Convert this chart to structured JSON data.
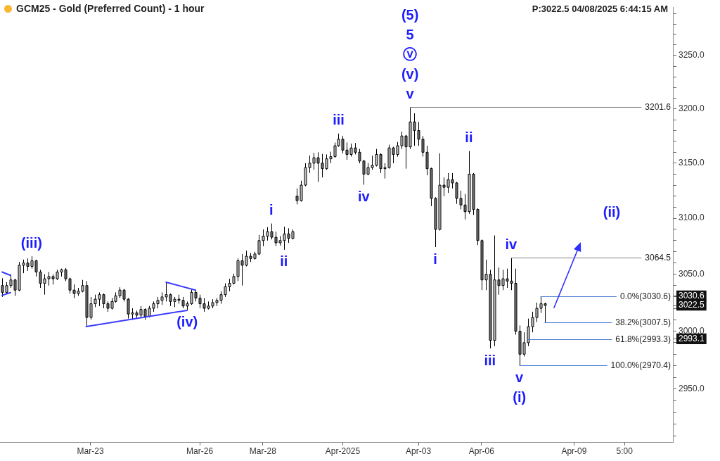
{
  "chart_data": {
    "type": "candlestick",
    "title": "GCM25 - Gold (Preferred Count) - 1 hour",
    "subtitle": "P:3022.5 04/08/2025 6:44:15 AM",
    "categories": [
      null,
      null,
      null,
      null,
      null,
      null,
      null,
      null,
      null,
      null,
      null,
      null,
      null,
      null,
      null,
      null,
      null,
      null,
      null,
      null,
      null,
      "Mar-23",
      null,
      null,
      null,
      null,
      null,
      null,
      null,
      null,
      null,
      null,
      null,
      null,
      null,
      null,
      null,
      null,
      null,
      null,
      null,
      null,
      null,
      null,
      null,
      null,
      null,
      "Mar-26",
      null,
      null,
      null,
      null,
      null,
      null,
      null,
      null,
      null,
      null,
      null,
      null,
      null,
      null,
      "Mar-28",
      null,
      null,
      null,
      null,
      null,
      null,
      null,
      null,
      null,
      null,
      null,
      null,
      null,
      null,
      null,
      null,
      null,
      null,
      "Apr-2025",
      null,
      null,
      null,
      null,
      null,
      null,
      null,
      null,
      null,
      null,
      null,
      null,
      null,
      null,
      null,
      null,
      null,
      "Apr-03",
      null,
      null,
      null,
      null,
      null,
      null,
      null,
      null,
      null,
      null,
      null,
      null,
      null,
      null,
      "Apr-06",
      null,
      null,
      null,
      null,
      null,
      null,
      null,
      null,
      null,
      null,
      null,
      null,
      null,
      null,
      null,
      null,
      null,
      null,
      null,
      null,
      null,
      "Apr-09",
      null,
      null,
      null,
      null,
      null,
      null,
      null,
      null,
      null,
      null,
      null,
      "5:00",
      null,
      null,
      null,
      null,
      null,
      null,
      null,
      null,
      null,
      null,
      null
    ],
    "ohlc": [
      [
        3040,
        3046.5,
        3030,
        3034
      ],
      [
        3034,
        3043,
        3033,
        3040
      ],
      [
        3040,
        3050,
        3038,
        3045
      ],
      [
        3045,
        3046,
        3031,
        3036
      ],
      [
        3036,
        3061,
        3035,
        3058
      ],
      [
        3058,
        3063,
        3051,
        3060
      ],
      [
        3060,
        3064,
        3053,
        3057
      ],
      [
        3057,
        3066,
        3055,
        3062
      ],
      [
        3062,
        3063,
        3048,
        3052
      ],
      [
        3052,
        3054,
        3038,
        3042
      ],
      [
        3042,
        3050,
        3032,
        3046
      ],
      [
        3046,
        3052,
        3040,
        3048
      ],
      [
        3048,
        3050,
        3041,
        3046
      ],
      [
        3046,
        3054,
        3045,
        3052
      ],
      [
        3052,
        3055,
        3048,
        3054
      ],
      [
        3054,
        3055.5,
        3044,
        3046
      ],
      [
        3046,
        3047,
        3033,
        3036
      ],
      [
        3036,
        3041,
        3029,
        3033
      ],
      [
        3033,
        3038,
        3031,
        3035
      ],
      [
        3035,
        3045,
        3034,
        3040
      ],
      [
        3040,
        3044,
        3004.0,
        3012
      ],
      [
        3012,
        3030,
        3010,
        3024
      ],
      [
        3024,
        3032,
        3021,
        3028
      ],
      [
        3028,
        3034,
        3022,
        3032
      ],
      [
        3032,
        3033,
        3020,
        3024
      ],
      [
        3024,
        3026,
        3017,
        3020
      ],
      [
        3020,
        3029,
        3019,
        3026
      ],
      [
        3026,
        3034,
        3025,
        3031
      ],
      [
        3031,
        3038.5,
        3029,
        3036
      ],
      [
        3036,
        3037,
        3026,
        3028
      ],
      [
        3028,
        3029,
        3011,
        3015
      ],
      [
        3015,
        3020,
        3010,
        3016
      ],
      [
        3016,
        3018,
        3011,
        3014
      ],
      [
        3014,
        3022,
        3012,
        3019
      ],
      [
        3019,
        3020,
        3010,
        3013
      ],
      [
        3013,
        3022,
        3012,
        3020
      ],
      [
        3020,
        3026,
        3017,
        3024
      ],
      [
        3024,
        3030,
        3020,
        3027
      ],
      [
        3027,
        3034,
        3023,
        3030
      ],
      [
        3030,
        3043.0,
        3026,
        3032
      ],
      [
        3032,
        3033,
        3022,
        3026
      ],
      [
        3026,
        3030,
        3021,
        3028
      ],
      [
        3028,
        3032,
        3024,
        3027
      ],
      [
        3027,
        3030,
        3020,
        3022
      ],
      [
        3022,
        3026,
        3018.2,
        3024
      ],
      [
        3024,
        3036.5,
        3023,
        3034
      ],
      [
        3034,
        3036,
        3026,
        3029
      ],
      [
        3029,
        3032,
        3020,
        3024
      ],
      [
        3024,
        3029,
        3017,
        3020
      ],
      [
        3020,
        3026,
        3019,
        3022
      ],
      [
        3022,
        3028,
        3020,
        3025
      ],
      [
        3025,
        3029,
        3022,
        3027
      ],
      [
        3027,
        3035,
        3024,
        3032
      ],
      [
        3032,
        3042,
        3030,
        3039
      ],
      [
        3039,
        3046,
        3035,
        3042
      ],
      [
        3042,
        3050.5,
        3041,
        3048
      ],
      [
        3048,
        3064,
        3044,
        3062
      ],
      [
        3062,
        3068,
        3040,
        3058
      ],
      [
        3058,
        3071,
        3057,
        3066
      ],
      [
        3066,
        3069,
        3061,
        3064
      ],
      [
        3064,
        3070,
        3063,
        3068
      ],
      [
        3068,
        3085,
        3067,
        3080
      ],
      [
        3080,
        3090,
        3075,
        3084
      ],
      [
        3084,
        3092,
        3080,
        3088
      ],
      [
        3088,
        3095.3,
        3081,
        3083
      ],
      [
        3083,
        3088,
        3075,
        3078
      ],
      [
        3078,
        3084,
        3075.5,
        3080
      ],
      [
        3080,
        3092.5,
        3071.8,
        3086
      ],
      [
        3086,
        3091,
        3078,
        3082
      ],
      [
        3082,
        3090,
        3081,
        3088
      ],
      [
        3120,
        3127,
        3112.6,
        3116
      ],
      [
        3116,
        3134,
        3115,
        3130
      ],
      [
        3130,
        3150,
        3129,
        3146
      ],
      [
        3146,
        3157,
        3141,
        3150
      ],
      [
        3150,
        3159.5,
        3144,
        3155
      ],
      [
        3155,
        3160,
        3133,
        3150
      ],
      [
        3150,
        3158.5,
        3137,
        3145
      ],
      [
        3145,
        3158,
        3144,
        3154
      ],
      [
        3154,
        3160.5,
        3150,
        3156
      ],
      [
        3156,
        3169,
        3155,
        3166
      ],
      [
        3166,
        3177.2,
        3165,
        3172
      ],
      [
        3172,
        3175,
        3159,
        3162
      ],
      [
        3162,
        3169,
        3153,
        3158
      ],
      [
        3158,
        3168,
        3156,
        3164
      ],
      [
        3164,
        3168.5,
        3158,
        3160
      ],
      [
        3160,
        3163,
        3150,
        3152
      ],
      [
        3152,
        3153,
        3130.4,
        3140
      ],
      [
        3140,
        3150,
        3139,
        3146
      ],
      [
        3146,
        3157,
        3144,
        3148
      ],
      [
        3148,
        3163,
        3147,
        3158
      ],
      [
        3158,
        3159,
        3141,
        3145
      ],
      [
        3145,
        3150,
        3136,
        3146
      ],
      [
        3146,
        3167,
        3145,
        3164
      ],
      [
        3164,
        3165,
        3150,
        3158
      ],
      [
        3158,
        3169.5,
        3156,
        3166
      ],
      [
        3166,
        3179,
        3163,
        3175
      ],
      [
        3175,
        3176,
        3145,
        3165
      ],
      [
        3165,
        3201.6,
        3163,
        3188
      ],
      [
        3188,
        3196,
        3166,
        3180
      ],
      [
        3180,
        3188,
        3166,
        3172
      ],
      [
        3172,
        3175,
        3156,
        3160
      ],
      [
        3160,
        3166,
        3139,
        3145
      ],
      [
        3145,
        3146,
        3111,
        3118
      ],
      [
        3118,
        3119,
        3074.2,
        3090
      ],
      [
        3090,
        3159,
        3089,
        3130
      ],
      [
        3130,
        3137,
        3120,
        3128
      ],
      [
        3128,
        3141,
        3123,
        3135
      ],
      [
        3135,
        3141,
        3127,
        3132
      ],
      [
        3132,
        3133,
        3113,
        3118
      ],
      [
        3118,
        3125,
        3108,
        3112
      ],
      [
        3112,
        3122,
        3099,
        3106
      ],
      [
        3106,
        3161.1,
        3104,
        3140
      ],
      [
        3140,
        3141,
        3103,
        3108
      ],
      [
        3108,
        3109,
        3076,
        3080
      ],
      [
        3080,
        3081,
        3036,
        3045
      ],
      [
        3045,
        3063,
        3036,
        3050
      ],
      [
        3050,
        3054,
        2985.0,
        2992
      ],
      [
        2992,
        3084.6,
        2987,
        3045
      ],
      [
        3045,
        3056,
        3032,
        3040
      ],
      [
        3040,
        3054,
        3036,
        3046
      ],
      [
        3046,
        3055,
        3038,
        3044
      ],
      [
        3044,
        3064.5,
        3036,
        3042
      ],
      [
        3042,
        3055,
        2997,
        3000
      ],
      [
        3000,
        3005,
        2970.4,
        2980
      ],
      [
        2980,
        2999,
        2978,
        2990
      ],
      [
        2990,
        3011,
        2987,
        3004
      ],
      [
        3004,
        3017,
        2999,
        3012
      ],
      [
        3012,
        3025,
        3008,
        3020
      ],
      [
        3020,
        3030.6,
        3016,
        3024
      ],
      [
        3024,
        3025,
        3007.5,
        3022.5
      ],
      null,
      null,
      null,
      null,
      null,
      null,
      null,
      null,
      null,
      null,
      null,
      null,
      null,
      null,
      null,
      null,
      null,
      null,
      null,
      null,
      null,
      null,
      null,
      null,
      null,
      null,
      null,
      null,
      null,
      null
    ],
    "colors": [
      "#707070",
      "#c0c0c0",
      "#c0c0c0",
      "#707070",
      "#c0c0c0",
      "#c0c0c0",
      "#707070",
      "#c0c0c0",
      "#707070",
      "#707070",
      "#c0c0c0",
      "#c0c0c0",
      "#707070",
      "#c0c0c0",
      "#c0c0c0",
      "#707070",
      "#707070",
      "#707070",
      "#c0c0c0",
      "#c0c0c0",
      "#707070",
      "#c0c0c0",
      "#c0c0c0",
      "#c0c0c0",
      "#707070",
      "#707070",
      "#c0c0c0",
      "#c0c0c0",
      "#c0c0c0",
      "#707070",
      "#707070",
      "#c0c0c0",
      "#707070",
      "#c0c0c0",
      "#707070",
      "#c0c0c0",
      "#c0c0c0",
      "#c0c0c0",
      "#c0c0c0",
      "#c0c0c0",
      "#707070",
      "#c0c0c0",
      "#707070",
      "#707070",
      "#c0c0c0",
      "#c0c0c0",
      "#707070",
      "#707070",
      "#707070",
      "#c0c0c0",
      "#c0c0c0",
      "#c0c0c0",
      "#c0c0c0",
      "#c0c0c0",
      "#c0c0c0",
      "#c0c0c0",
      "#c0c0c0",
      "#707070",
      "#c0c0c0",
      "#707070",
      "#c0c0c0",
      "#c0c0c0",
      "#c0c0c0",
      "#c0c0c0",
      "#707070",
      "#707070",
      "#c0c0c0",
      "#c0c0c0",
      "#707070",
      "#c0c0c0",
      "#707070",
      "#c0c0c0",
      "#c0c0c0",
      "#c0c0c0",
      "#c0c0c0",
      "#707070",
      "#707070",
      "#c0c0c0",
      "#c0c0c0",
      "#c0c0c0",
      "#c0c0c0",
      "#707070",
      "#707070",
      "#c0c0c0",
      "#707070",
      "#707070",
      "#707070",
      "#c0c0c0",
      "#c0c0c0",
      "#c0c0c0",
      "#707070",
      "#c0c0c0",
      "#c0c0c0",
      "#707070",
      "#c0c0c0",
      "#c0c0c0",
      "#707070",
      "#c0c0c0",
      "#707070",
      "#707070",
      "#707070",
      "#707070",
      "#707070",
      "#707070",
      "#c0c0c0",
      "#707070",
      "#c0c0c0",
      "#707070",
      "#707070",
      "#707070",
      "#707070",
      "#c0c0c0",
      "#707070",
      "#707070",
      "#707070",
      "#c0c0c0",
      "#707070",
      "#c0c0c0",
      "#707070",
      "#c0c0c0",
      "#707070",
      "#707070",
      "#707070",
      "#707070",
      "#c0c0c0",
      "#c0c0c0",
      "#c0c0c0",
      "#c0c0c0",
      "#c0c0c0",
      "#707070",
      null,
      null,
      null,
      null,
      null,
      null,
      null,
      null,
      null,
      null,
      null,
      null,
      null,
      null,
      null,
      null,
      null,
      null,
      null,
      null,
      null,
      null,
      null,
      null,
      null,
      null,
      null,
      null,
      null,
      null
    ],
    "series": [
      {
        "type": "line",
        "color": "#3c3cff",
        "values": [
          3052,
          null,
          3049,
          null,
          null,
          null,
          null,
          null,
          null,
          null,
          null,
          null,
          null,
          null,
          null,
          null,
          null,
          null,
          null,
          null,
          null,
          null,
          null,
          null,
          null,
          null,
          null,
          null,
          null,
          null,
          null,
          null,
          null,
          null,
          null,
          null,
          null,
          null,
          null,
          null,
          null,
          null,
          null,
          null,
          null,
          null,
          null,
          null,
          null,
          null,
          null,
          null,
          null,
          null,
          null,
          null,
          null,
          null,
          null,
          null,
          null,
          null,
          null,
          null,
          null,
          null,
          null,
          null,
          null,
          null,
          null,
          null,
          null,
          null,
          null,
          null,
          null,
          null,
          null,
          null,
          null,
          null,
          null,
          null,
          null,
          null,
          null,
          null,
          null,
          null,
          null,
          null,
          null,
          null,
          null,
          null,
          null,
          null,
          null,
          null,
          null,
          null,
          null,
          null,
          null,
          null,
          null,
          null,
          null,
          null,
          null,
          null,
          null,
          null,
          null,
          null,
          null,
          null,
          null,
          null,
          null,
          null,
          null,
          null,
          null,
          null,
          null,
          null,
          null,
          null,
          null,
          null,
          null,
          null,
          null,
          null,
          null,
          null,
          null,
          null,
          null,
          null,
          null,
          null,
          null,
          null,
          null,
          null,
          null,
          null,
          null,
          null,
          null,
          null,
          null,
          null,
          null,
          null,
          null,
          null
        ]
      },
      {
        "type": "line",
        "color": "#3c3cff",
        "values": [
          3031.4,
          null,
          3033.8,
          null,
          null,
          null,
          null,
          null,
          null,
          null,
          null,
          null,
          null,
          null,
          null,
          null,
          null,
          null,
          null,
          null,
          null,
          null,
          null,
          null,
          null,
          null,
          null,
          null,
          null,
          null,
          null,
          null,
          null,
          null,
          null,
          null,
          null,
          null,
          null,
          null,
          null,
          null,
          null,
          null,
          null,
          null,
          null,
          null,
          null,
          null,
          null,
          null,
          null,
          null,
          null,
          null,
          null,
          null,
          null,
          null,
          null,
          null,
          null,
          null,
          null,
          null,
          null,
          null,
          null,
          null,
          null,
          null,
          null,
          null,
          null,
          null,
          null,
          null,
          null,
          null,
          null,
          null,
          null,
          null,
          null,
          null,
          null,
          null,
          null,
          null,
          null,
          null,
          null,
          null,
          null,
          null,
          null,
          null,
          null,
          null,
          null,
          null,
          null,
          null,
          null,
          null,
          null,
          null,
          null,
          null,
          null,
          null,
          null,
          null,
          null,
          null,
          null,
          null,
          null,
          null,
          null,
          null,
          null,
          null,
          null,
          null,
          null,
          null,
          null,
          null,
          null,
          null,
          null,
          null,
          null,
          null,
          null,
          null,
          null,
          null,
          null,
          null,
          null,
          null,
          null,
          null,
          null,
          null,
          null,
          null,
          null,
          null,
          null,
          null,
          null,
          null,
          null,
          null,
          null,
          null
        ]
      },
      {
        "type": "line",
        "color": "#3c3cff",
        "values": [
          null,
          null,
          null,
          null,
          null,
          null,
          null,
          null,
          null,
          null,
          null,
          null,
          null,
          null,
          null,
          null,
          null,
          null,
          null,
          null,
          3004.0,
          null,
          null,
          null,
          null,
          null,
          null,
          null,
          null,
          null,
          null,
          null,
          null,
          null,
          null,
          null,
          null,
          null,
          null,
          null,
          null,
          null,
          null,
          null,
          3018.2,
          null,
          null,
          null,
          null,
          null,
          null,
          null,
          null,
          null,
          null,
          null,
          null,
          null,
          null,
          null,
          null,
          null,
          null,
          null,
          null,
          null,
          null,
          null,
          null,
          null,
          null,
          null,
          null,
          null,
          null,
          null,
          null,
          null,
          null,
          null,
          null,
          null,
          null,
          null,
          null,
          null,
          null,
          null,
          null,
          null,
          null,
          null,
          null,
          null,
          null,
          null,
          null,
          null,
          null,
          null,
          null,
          null,
          null,
          null,
          null,
          null,
          null,
          null,
          null,
          null,
          null,
          null,
          null,
          null,
          null,
          null,
          null,
          null,
          null,
          null,
          null,
          null,
          null,
          null,
          null,
          null,
          null,
          null,
          null,
          null,
          null,
          null,
          null,
          null,
          null,
          null,
          null,
          null,
          null,
          null,
          null,
          null,
          null,
          null,
          null,
          null,
          null,
          null,
          null,
          null,
          null,
          null,
          null,
          null,
          null,
          null,
          null,
          null,
          null,
          null
        ]
      },
      {
        "type": "line",
        "color": "#3c3cff",
        "values": [
          null,
          null,
          null,
          null,
          null,
          null,
          null,
          null,
          null,
          null,
          null,
          null,
          null,
          null,
          null,
          null,
          null,
          null,
          null,
          null,
          null,
          null,
          null,
          null,
          null,
          null,
          null,
          null,
          null,
          null,
          null,
          null,
          null,
          null,
          null,
          null,
          null,
          null,
          null,
          3043.0,
          null,
          null,
          null,
          null,
          null,
          null,
          3036.0,
          null,
          null,
          null,
          null,
          null,
          null,
          null,
          null,
          null,
          null,
          null,
          null,
          null,
          null,
          null,
          null,
          null,
          null,
          null,
          null,
          null,
          null,
          null,
          null,
          null,
          null,
          null,
          null,
          null,
          null,
          null,
          null,
          null,
          null,
          null,
          null,
          null,
          null,
          null,
          null,
          null,
          null,
          null,
          null,
          null,
          null,
          null,
          null,
          null,
          null,
          null,
          null,
          null,
          null,
          null,
          null,
          null,
          null,
          null,
          null,
          null,
          null,
          null,
          null,
          null,
          null,
          null,
          null,
          null,
          null,
          null,
          null,
          null,
          null,
          null,
          null,
          null,
          null,
          null,
          null,
          null,
          null,
          null,
          null,
          null,
          null,
          null,
          null,
          null,
          null,
          null,
          null,
          null,
          null,
          null,
          null,
          null,
          null,
          null,
          null,
          null,
          null,
          null,
          null,
          null,
          null,
          null,
          null,
          null,
          null,
          null,
          null,
          null
        ]
      }
    ],
    "ylim": [
      2905,
      3296
    ],
    "log": true,
    "yticks": [
      {
        "value": 2910,
        "label": null
      },
      {
        "value": 2920,
        "label": null
      },
      {
        "value": 2930,
        "label": null
      },
      {
        "value": 2940,
        "label": null
      },
      {
        "value": 2950,
        "label": "2950.0"
      },
      {
        "value": 2960,
        "label": null
      },
      {
        "value": 2970,
        "label": null
      },
      {
        "value": 2980,
        "label": null
      },
      {
        "value": 2990,
        "label": null
      },
      2993.1,
      {
        "value": 3000,
        "label": "3000.0"
      },
      {
        "value": 3010,
        "label": null
      },
      {
        "value": 3020,
        "label": null
      },
      3022.5,
      {
        "value": 3030,
        "label": null
      },
      3030.6,
      {
        "value": 3040,
        "label": null
      },
      {
        "value": 3050,
        "label": "3050.0"
      },
      {
        "value": 3060,
        "label": null
      },
      {
        "value": 3070,
        "label": null
      },
      {
        "value": 3080,
        "label": null
      },
      {
        "value": 3090,
        "label": null
      },
      {
        "value": 3100,
        "label": "3100.0"
      },
      {
        "value": 3110,
        "label": null
      },
      {
        "value": 3120,
        "label": null
      },
      {
        "value": 3130,
        "label": null
      },
      {
        "value": 3140,
        "label": null
      },
      {
        "value": 3150,
        "label": "3150.0"
      },
      {
        "value": 3160,
        "label": null
      },
      {
        "value": 3170,
        "label": null
      },
      {
        "value": 3180,
        "label": null
      },
      {
        "value": 3190,
        "label": null
      },
      {
        "value": 3200,
        "label": "3200.0"
      },
      {
        "value": 3210,
        "label": null
      },
      {
        "value": 3220,
        "label": null
      },
      {
        "value": 3230,
        "label": null
      },
      {
        "value": 3240,
        "label": null
      },
      {
        "value": 3250,
        "label": "3250.0"
      },
      {
        "value": 3260,
        "label": null
      },
      {
        "value": 3270,
        "label": null
      },
      {
        "value": 3280,
        "label": null
      },
      {
        "value": 3290,
        "label": null
      }
    ],
    "ref_lines": [
      {
        "axis": "y",
        "value": 3201.6,
        "label": "3201.6",
        "color": "#7f7f7f"
      },
      {
        "axis": "y",
        "value": 3064.5,
        "label": "3064.5",
        "color": "#7f7f7f"
      },
      {
        "axis": "y",
        "value": 3030.6,
        "label": "0.0%(3030.6)",
        "color": "#4a7cd6"
      },
      {
        "axis": "y",
        "value": 3007.5,
        "label": "38.2%(3007.5)",
        "color": "#4a7cd6"
      },
      {
        "axis": "y",
        "value": 2993.3,
        "label": "61.8%(2993.3)",
        "color": "#4a7cd6"
      },
      {
        "axis": "y",
        "value": 2970.4,
        "label": "100.0%(2970.4)",
        "color": "#4a7cd6"
      }
    ],
    "annotations": [
      "(5)",
      "5",
      "ⓥ",
      {
        "text": "(v)",
        "y": 3201.6
      },
      {
        "text": "v",
        "y": 3201.6
      },
      {
        "text": "(iii)",
        "y": 3066
      },
      {
        "text": "(iv)",
        "y": 3018.2
      },
      {
        "text": "i",
        "y": 3095.3
      },
      {
        "text": "ii",
        "y": 3071.8
      },
      {
        "text": "iii",
        "y": 3177.2
      },
      {
        "text": "iv",
        "y": 3130.4
      },
      {
        "text": "i",
        "y": 3074.2
      },
      {
        "text": "ii",
        "y": 3161.1
      },
      {
        "text": "iii",
        "y": 2985.0
      },
      {
        "text": "iv",
        "y": 3064.5
      },
      {
        "text": "v",
        "y": 2970.4
      },
      {
        "text": "(i)",
        "y": 2970.4
      },
      "(ii)"
    ]
  }
}
